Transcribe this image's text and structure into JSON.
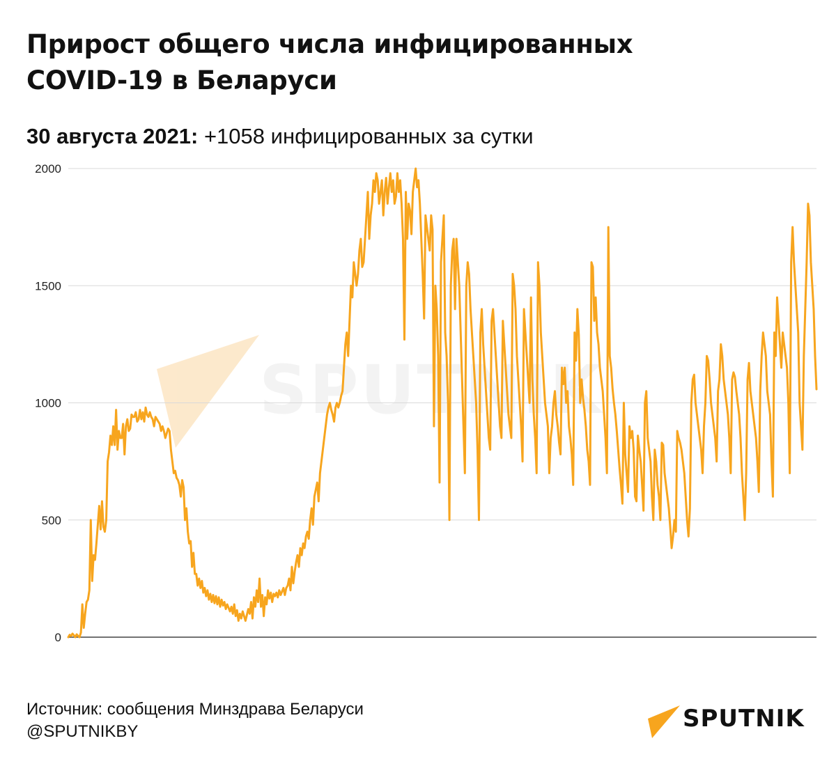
{
  "header": {
    "title_line1": "Прирост общего числа инфицированных",
    "title_line2": "COVID-19 в Беларуси",
    "subtitle_date": "30 августа 2021:",
    "subtitle_text": " +1058 инфицированных за сутки"
  },
  "watermark": {
    "text": "SPUTNIK"
  },
  "footer": {
    "source": "Источник: сообщения Минздрава Беларуси",
    "handle": "@SPUTNIKBY"
  },
  "logo": {
    "text": "SPUTNIK"
  },
  "colors": {
    "line": "#f7a51e",
    "grid": "#d9d9d9",
    "axis": "#444444",
    "accent": "#f7a51e"
  },
  "chart_data": {
    "type": "line",
    "title": "Прирост общего числа инфицированных COVID-19 в Беларуси",
    "ylim": [
      0,
      2000
    ],
    "yticks": [
      "0",
      "500",
      "1000",
      "1500",
      "2000"
    ],
    "grid": true,
    "legend": "none",
    "series": [
      {
        "values": [
          0,
          10,
          5,
          15,
          8,
          0,
          12,
          5,
          0,
          20,
          140,
          40,
          100,
          150,
          160,
          200,
          500,
          240,
          350,
          330,
          400,
          480,
          560,
          460,
          580,
          470,
          450,
          500,
          750,
          790,
          860,
          820,
          900,
          820,
          970,
          800,
          880,
          850,
          850,
          910,
          780,
          900,
          930,
          880,
          890,
          950,
          940,
          940,
          960,
          920,
          930,
          970,
          930,
          960,
          920,
          980,
          950,
          940,
          960,
          940,
          930,
          900,
          940,
          930,
          920,
          910,
          880,
          900,
          880,
          850,
          870,
          890,
          880,
          800,
          750,
          700,
          710,
          680,
          670,
          650,
          600,
          670,
          640,
          500,
          550,
          450,
          400,
          410,
          300,
          360,
          270,
          270,
          220,
          250,
          210,
          240,
          190,
          210,
          175,
          200,
          160,
          185,
          150,
          180,
          145,
          175,
          140,
          170,
          130,
          160,
          135,
          150,
          120,
          140,
          125,
          110,
          130,
          100,
          140,
          90,
          115,
          70,
          100,
          80,
          110,
          90,
          70,
          95,
          120,
          100,
          150,
          80,
          170,
          130,
          200,
          150,
          250,
          130,
          180,
          90,
          170,
          140,
          200,
          165,
          190,
          150,
          185,
          175,
          190,
          170,
          200,
          180,
          195,
          210,
          180,
          210,
          220,
          250,
          200,
          300,
          230,
          280,
          320,
          350,
          300,
          380,
          350,
          400,
          380,
          430,
          450,
          420,
          500,
          550,
          480,
          600,
          630,
          660,
          580,
          700,
          750,
          800,
          850,
          900,
          950,
          980,
          1000,
          970,
          950,
          920,
          980,
          1000,
          980,
          1000,
          1030,
          1050,
          1150,
          1250,
          1300,
          1200,
          1350,
          1500,
          1450,
          1600,
          1550,
          1500,
          1550,
          1650,
          1700,
          1580,
          1600,
          1700,
          1800,
          1900,
          1700,
          1800,
          1850,
          1950,
          1900,
          1980,
          1950,
          1850,
          1900,
          1950,
          1800,
          1900,
          1960,
          1850,
          1920,
          1980,
          1900,
          1950,
          1850,
          1880,
          1980,
          1900,
          1950,
          1850,
          1700,
          1270,
          1900,
          1700,
          1850,
          1820,
          1720,
          1900,
          1950,
          2000,
          1920,
          1950,
          1850,
          1700,
          1550,
          1360,
          1800,
          1750,
          1700,
          1650,
          1800,
          1740,
          900,
          1500,
          1400,
          1200,
          660,
          1600,
          1700,
          1800,
          1300,
          1200,
          1000,
          500,
          1500,
          1650,
          1700,
          1400,
          1700,
          1600,
          1500,
          1300,
          1100,
          900,
          700,
          1500,
          1600,
          1550,
          1400,
          1300,
          1200,
          1100,
          1000,
          800,
          500,
          1300,
          1400,
          1250,
          1150,
          1050,
          950,
          850,
          800,
          1350,
          1400,
          1300,
          1200,
          1100,
          1000,
          900,
          850,
          1350,
          1250,
          1150,
          1050,
          950,
          900,
          850,
          1550,
          1500,
          1400,
          1200,
          1100,
          1000,
          900,
          750,
          1400,
          1300,
          1200,
          1100,
          1000,
          1450,
          1100,
          950,
          850,
          700,
          1600,
          1500,
          1300,
          1200,
          1100,
          1000,
          950,
          900,
          700,
          850,
          900,
          1000,
          1050,
          950,
          900,
          830,
          780,
          1150,
          1080,
          1150,
          1000,
          1050,
          900,
          850,
          780,
          650,
          1300,
          1180,
          1400,
          1290,
          1000,
          1100,
          1020,
          970,
          900,
          800,
          750,
          650,
          1600,
          1580,
          1350,
          1450,
          1300,
          1250,
          1150,
          1100,
          1050,
          950,
          850,
          700,
          1750,
          1200,
          1150,
          1060,
          1000,
          950,
          880,
          800,
          720,
          650,
          570,
          1000,
          780,
          700,
          620,
          900,
          850,
          880,
          800,
          600,
          580,
          860,
          800,
          750,
          650,
          540,
          1000,
          1050,
          850,
          800,
          750,
          600,
          500,
          800,
          750,
          650,
          600,
          500,
          830,
          820,
          700,
          650,
          600,
          550,
          470,
          380,
          430,
          500,
          450,
          880,
          850,
          830,
          800,
          750,
          700,
          600,
          500,
          430,
          550,
          1000,
          1100,
          1120,
          1000,
          950,
          900,
          850,
          800,
          700,
          900,
          1000,
          1200,
          1180,
          1100,
          1000,
          950,
          900,
          850,
          750,
          1050,
          1100,
          1250,
          1200,
          1100,
          1050,
          1000,
          950,
          850,
          700,
          1100,
          1130,
          1110,
          1050,
          1000,
          950,
          850,
          700,
          600,
          500,
          700,
          1100,
          1170,
          1050,
          1000,
          950,
          900,
          850,
          750,
          620,
          1050,
          1200,
          1300,
          1250,
          1200,
          1050,
          1000,
          950,
          750,
          600,
          1300,
          1200,
          1450,
          1350,
          1250,
          1150,
          1300,
          1250,
          1200,
          1150,
          1000,
          700,
          1600,
          1750,
          1600,
          1500,
          1400,
          1300,
          1000,
          900,
          800,
          1200,
          1400,
          1600,
          1850,
          1800,
          1600,
          1500,
          1400,
          1200,
          1058
        ]
      }
    ]
  }
}
